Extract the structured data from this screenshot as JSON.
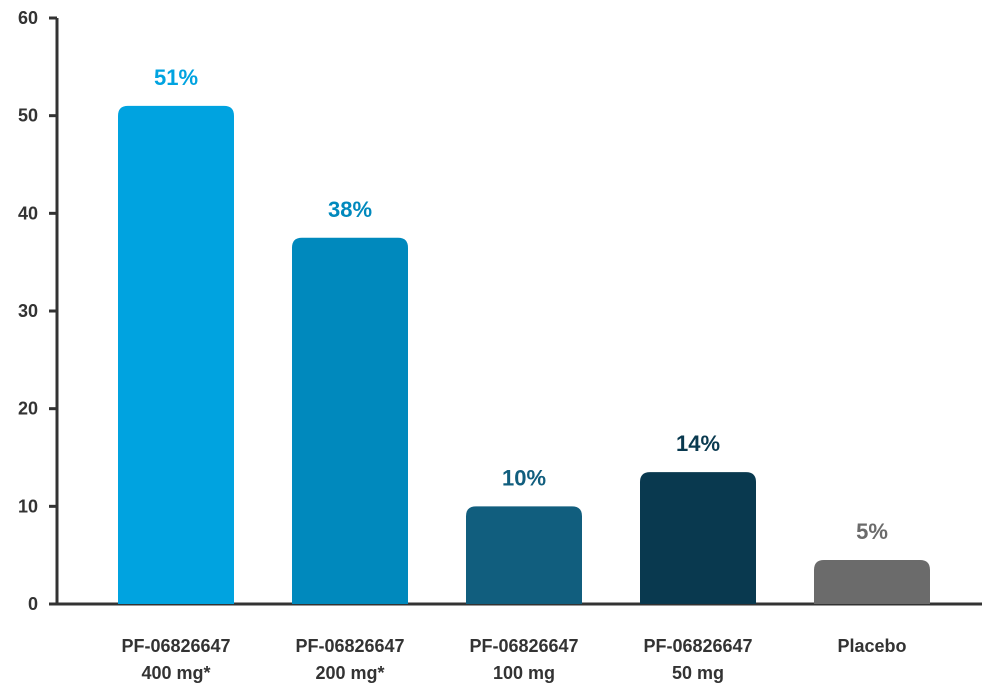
{
  "chart_data": {
    "type": "bar",
    "title": "",
    "xlabel": "",
    "ylabel": "",
    "ylim": [
      0,
      60
    ],
    "yticks": [
      0,
      10,
      20,
      30,
      40,
      50,
      60
    ],
    "grid": false,
    "categories": [
      [
        "PF-06826647",
        "400 mg*"
      ],
      [
        "PF-06826647",
        "200 mg*"
      ],
      [
        "PF-06826647",
        "100 mg"
      ],
      [
        "PF-06826647",
        "50 mg"
      ],
      [
        "Placebo"
      ]
    ],
    "values": [
      51,
      37.5,
      10,
      13.5,
      4.5
    ],
    "value_labels": [
      "51%",
      "38%",
      "10%",
      "14%",
      "5%"
    ],
    "colors": [
      "#00a3e0",
      "#0089bd",
      "#115e7e",
      "#09394f",
      "#6b6b6b"
    ],
    "label_colors": [
      "#00a3e0",
      "#0089bd",
      "#115e7e",
      "#09394f",
      "#6b6b6b"
    ],
    "axis_color": "#333333"
  }
}
